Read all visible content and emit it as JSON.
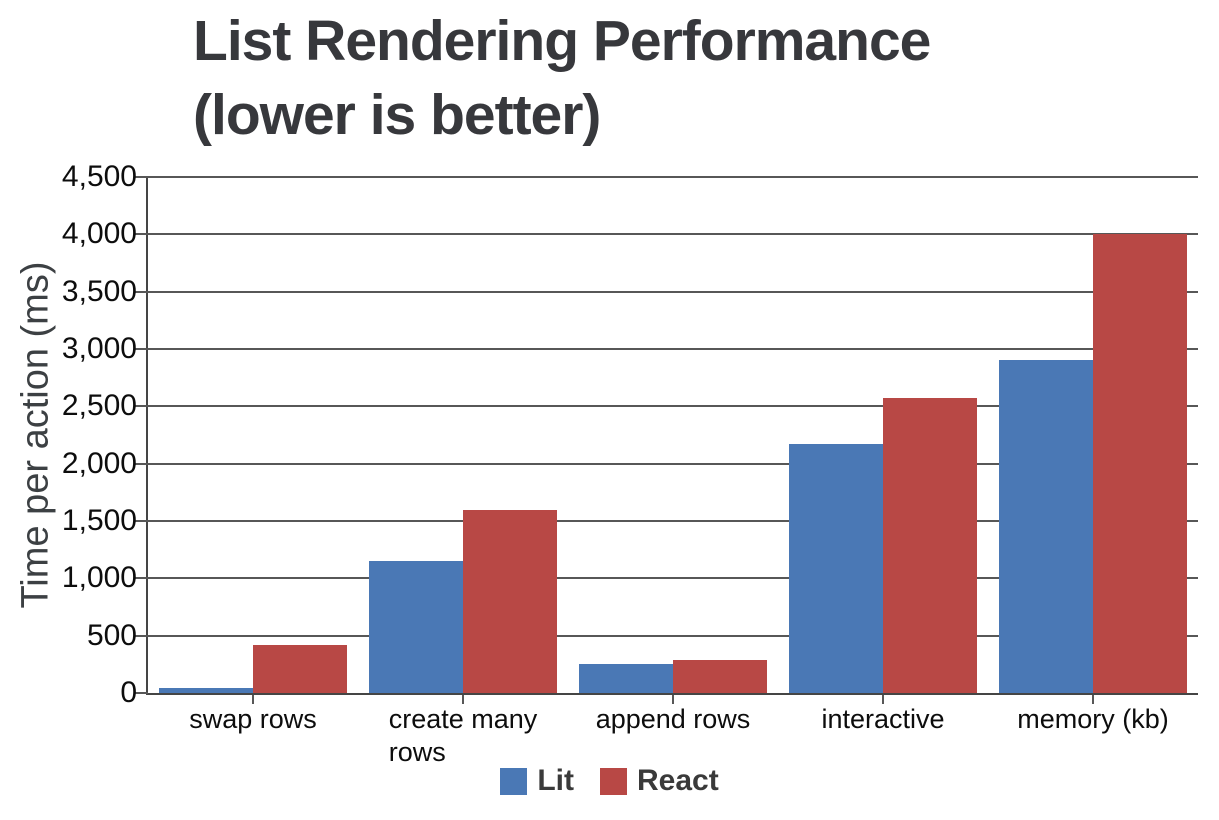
{
  "chart_data": {
    "type": "bar",
    "title_lines": [
      "List Rendering Performance",
      "(lower is better)"
    ],
    "ylabel": "Time per action (ms)",
    "xlabel": "",
    "categories": [
      "swap rows",
      "create many\nrows",
      "append rows",
      "interactive",
      "memory (kb)"
    ],
    "series": [
      {
        "name": "Lit",
        "color": "#4A78B5",
        "values": [
          45,
          1150,
          250,
          2175,
          2900
        ]
      },
      {
        "name": "React",
        "color": "#B84845",
        "values": [
          420,
          1600,
          285,
          2575,
          4000
        ]
      }
    ],
    "y_axis": {
      "min": 0,
      "max": 4500,
      "step": 500,
      "tick_labels": [
        "0",
        "500",
        "1,000",
        "1,500",
        "2,000",
        "2,500",
        "3,000",
        "3,500",
        "4,000",
        "4,500"
      ]
    },
    "grid": true,
    "legend_position": "bottom"
  },
  "style": {
    "background_color": "#FFFFFF",
    "grid_color": "#575757",
    "axis_color": "#454545",
    "tick_color": "#575757",
    "title_color": "#37383C",
    "axis_title_color": "#3C4043",
    "tick_label_color": "#0D0D0D",
    "legend_text_color": "#3A3A3A"
  }
}
